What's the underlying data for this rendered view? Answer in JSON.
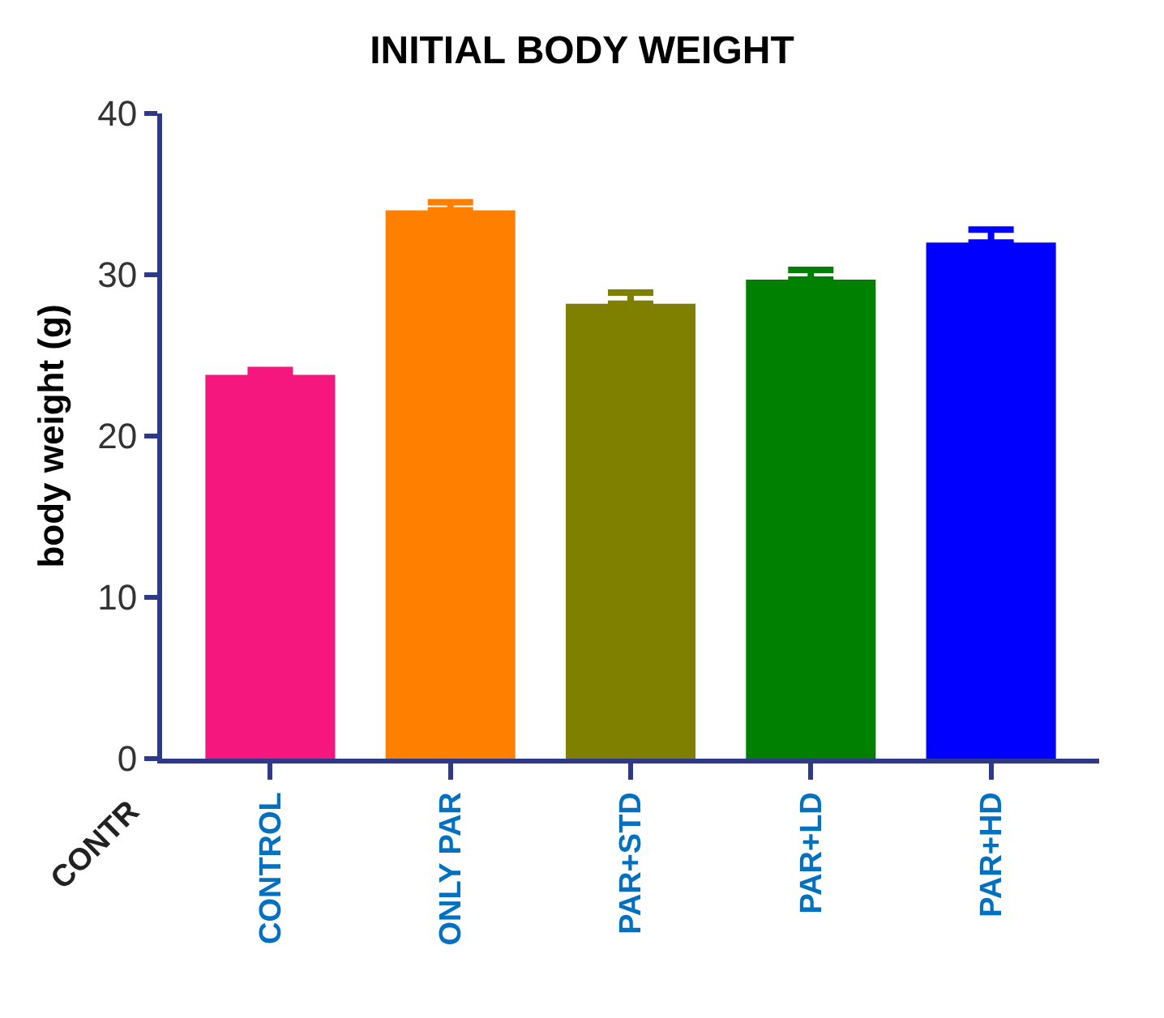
{
  "chart_data": {
    "type": "bar",
    "title": "INITIAL BODY WEIGHT",
    "ylabel": "body weight (g)",
    "categories": [
      "CONTROL",
      "ONLY PAR",
      "PAR+STD",
      "PAR+LD",
      "PAR+HD"
    ],
    "values": [
      23.8,
      34.0,
      28.2,
      29.7,
      32.0
    ],
    "errors": [
      [
        23.8,
        24.1
      ],
      [
        34.0,
        34.5
      ],
      [
        28.2,
        28.9
      ],
      [
        29.7,
        30.3
      ],
      [
        32.0,
        32.8
      ]
    ],
    "colors": [
      "#f5167e",
      "#ff8000",
      "#808000",
      "#008000",
      "#0000ff"
    ],
    "ylim": [
      0,
      40
    ],
    "yticks": [
      0,
      10,
      20,
      30,
      40
    ],
    "annotations": [
      "CONTR"
    ]
  }
}
